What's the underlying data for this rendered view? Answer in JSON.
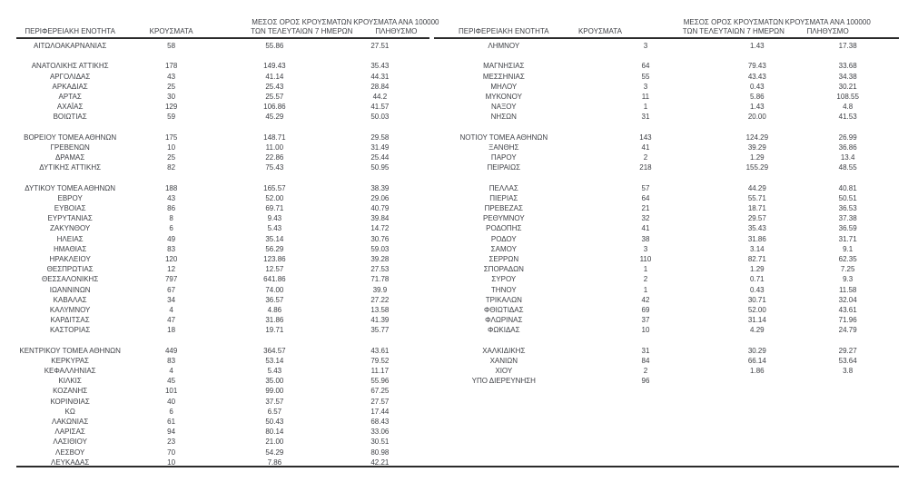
{
  "colors": {
    "text": "#3d3f44",
    "rule": "#2b2b2b",
    "background": "#ffffff"
  },
  "columns": {
    "region": "ΠΕΡΙΦΕΡΕΙΑΚΗ ΕΝΟΤΗΤΑ",
    "cases": "ΚΡΟΥΣΜΑΤΑ",
    "avg7": "ΜΕΣΟΣ ΟΡΟΣ ΚΡΟΥΣΜΑΤΩΝ ΤΩΝ ΤΕΛΕΥΤΑΙΩΝ 7 ΗΜΕΡΩΝ",
    "per100k": "ΚΡΟΥΣΜΑΤΑ ΑΝΑ 100000 ΠΛΗΘΥΣΜΟ"
  },
  "tables": {
    "left": {
      "groups": [
        [
          {
            "region": "ΑΙΤΩΛΟΑΚΑΡΝΑΝΙΑΣ",
            "cases": "58",
            "avg7": "55.86",
            "per100k": "27.51"
          }
        ],
        [
          {
            "region": "ΑΝΑΤΟΛΙΚΗΣ ΑΤΤΙΚΗΣ",
            "cases": "178",
            "avg7": "149.43",
            "per100k": "35.43"
          },
          {
            "region": "ΑΡΓΟΛΙΔΑΣ",
            "cases": "43",
            "avg7": "41.14",
            "per100k": "44.31"
          },
          {
            "region": "ΑΡΚΑΔΙΑΣ",
            "cases": "25",
            "avg7": "25.43",
            "per100k": "28.84"
          },
          {
            "region": "ΑΡΤΑΣ",
            "cases": "30",
            "avg7": "25.57",
            "per100k": "44.2"
          },
          {
            "region": "ΑΧΑΪΑΣ",
            "cases": "129",
            "avg7": "106.86",
            "per100k": "41.57"
          },
          {
            "region": "ΒΟΙΩΤΙΑΣ",
            "cases": "59",
            "avg7": "45.29",
            "per100k": "50.03"
          }
        ],
        [
          {
            "region": "ΒΟΡΕΙΟΥ ΤΟΜΕΑ ΑΘΗΝΩΝ",
            "cases": "175",
            "avg7": "148.71",
            "per100k": "29.58"
          },
          {
            "region": "ΓΡΕΒΕΝΩΝ",
            "cases": "10",
            "avg7": "11.00",
            "per100k": "31.49"
          },
          {
            "region": "ΔΡΑΜΑΣ",
            "cases": "25",
            "avg7": "22.86",
            "per100k": "25.44"
          },
          {
            "region": "ΔΥΤΙΚΗΣ ΑΤΤΙΚΗΣ",
            "cases": "82",
            "avg7": "75.43",
            "per100k": "50.95"
          }
        ],
        [
          {
            "region": "ΔΥΤΙΚΟΥ ΤΟΜΕΑ ΑΘΗΝΩΝ",
            "cases": "188",
            "avg7": "165.57",
            "per100k": "38.39"
          },
          {
            "region": "ΕΒΡΟΥ",
            "cases": "43",
            "avg7": "52.00",
            "per100k": "29.06"
          },
          {
            "region": "ΕΥΒΟΙΑΣ",
            "cases": "86",
            "avg7": "69.71",
            "per100k": "40.79"
          },
          {
            "region": "ΕΥΡΥΤΑΝΙΑΣ",
            "cases": "8",
            "avg7": "9.43",
            "per100k": "39.84"
          },
          {
            "region": "ΖΑΚΥΝΘΟΥ",
            "cases": "6",
            "avg7": "5.43",
            "per100k": "14.72"
          },
          {
            "region": "ΗΛΕΙΑΣ",
            "cases": "49",
            "avg7": "35.14",
            "per100k": "30.76"
          },
          {
            "region": "ΗΜΑΘΙΑΣ",
            "cases": "83",
            "avg7": "56.29",
            "per100k": "59.03"
          },
          {
            "region": "ΗΡΑΚΛΕΙΟΥ",
            "cases": "120",
            "avg7": "123.86",
            "per100k": "39.28"
          },
          {
            "region": "ΘΕΣΠΡΩΤΙΑΣ",
            "cases": "12",
            "avg7": "12.57",
            "per100k": "27.53"
          },
          {
            "region": "ΘΕΣΣΑΛΟΝΙΚΗΣ",
            "cases": "797",
            "avg7": "641.86",
            "per100k": "71.78"
          },
          {
            "region": "ΙΩΑΝΝΙΝΩΝ",
            "cases": "67",
            "avg7": "74.00",
            "per100k": "39.9"
          },
          {
            "region": "ΚΑΒΑΛΑΣ",
            "cases": "34",
            "avg7": "36.57",
            "per100k": "27.22"
          },
          {
            "region": "ΚΑΛΥΜΝΟΥ",
            "cases": "4",
            "avg7": "4.86",
            "per100k": "13.58"
          },
          {
            "region": "ΚΑΡΔΙΤΣΑΣ",
            "cases": "47",
            "avg7": "31.86",
            "per100k": "41.39"
          },
          {
            "region": "ΚΑΣΤΟΡΙΑΣ",
            "cases": "18",
            "avg7": "19.71",
            "per100k": "35.77"
          }
        ],
        [
          {
            "region": "ΚΕΝΤΡΙΚΟΥ ΤΟΜΕΑ ΑΘΗΝΩΝ",
            "cases": "449",
            "avg7": "364.57",
            "per100k": "43.61"
          },
          {
            "region": "ΚΕΡΚΥΡΑΣ",
            "cases": "83",
            "avg7": "53.14",
            "per100k": "79.52"
          },
          {
            "region": "ΚΕΦΑΛΛΗΝΙΑΣ",
            "cases": "4",
            "avg7": "5.43",
            "per100k": "11.17"
          },
          {
            "region": "ΚΙΛΚΙΣ",
            "cases": "45",
            "avg7": "35.00",
            "per100k": "55.96"
          },
          {
            "region": "ΚΟΖΑΝΗΣ",
            "cases": "101",
            "avg7": "99.00",
            "per100k": "67.25"
          },
          {
            "region": "ΚΟΡΙΝΘΙΑΣ",
            "cases": "40",
            "avg7": "37.57",
            "per100k": "27.57"
          },
          {
            "region": "ΚΩ",
            "cases": "6",
            "avg7": "6.57",
            "per100k": "17.44"
          },
          {
            "region": "ΛΑΚΩΝΙΑΣ",
            "cases": "61",
            "avg7": "50.43",
            "per100k": "68.43"
          },
          {
            "region": "ΛΑΡΙΣΑΣ",
            "cases": "94",
            "avg7": "80.14",
            "per100k": "33.06"
          },
          {
            "region": "ΛΑΣΙΘΙΟΥ",
            "cases": "23",
            "avg7": "21.00",
            "per100k": "30.51"
          },
          {
            "region": "ΛΕΣΒΟΥ",
            "cases": "70",
            "avg7": "54.29",
            "per100k": "80.98"
          },
          {
            "region": "ΛΕΥΚΑΔΑΣ",
            "cases": "10",
            "avg7": "7.86",
            "per100k": "42.21"
          }
        ]
      ]
    },
    "right": {
      "groups": [
        [
          {
            "region": "ΛΗΜΝΟΥ",
            "cases": "3",
            "avg7": "1.43",
            "per100k": "17.38"
          }
        ],
        [
          {
            "region": "ΜΑΓΝΗΣΙΑΣ",
            "cases": "64",
            "avg7": "79.43",
            "per100k": "33.68"
          },
          {
            "region": "ΜΕΣΣΗΝΙΑΣ",
            "cases": "55",
            "avg7": "43.43",
            "per100k": "34.38"
          },
          {
            "region": "ΜΗΛΟΥ",
            "cases": "3",
            "avg7": "0.43",
            "per100k": "30.21"
          },
          {
            "region": "ΜΥΚΟΝΟΥ",
            "cases": "11",
            "avg7": "5.86",
            "per100k": "108.55"
          },
          {
            "region": "ΝΑΞΟΥ",
            "cases": "1",
            "avg7": "1.43",
            "per100k": "4.8"
          },
          {
            "region": "ΝΗΣΩΝ",
            "cases": "31",
            "avg7": "20.00",
            "per100k": "41.53"
          }
        ],
        [
          {
            "region": "ΝΟΤΙΟΥ ΤΟΜΕΑ ΑΘΗΝΩΝ",
            "cases": "143",
            "avg7": "124.29",
            "per100k": "26.99"
          },
          {
            "region": "ΞΑΝΘΗΣ",
            "cases": "41",
            "avg7": "39.29",
            "per100k": "36.86"
          },
          {
            "region": "ΠΑΡΟΥ",
            "cases": "2",
            "avg7": "1.29",
            "per100k": "13.4"
          },
          {
            "region": "ΠΕΙΡΑΙΩΣ",
            "cases": "218",
            "avg7": "155.29",
            "per100k": "48.55"
          }
        ],
        [
          {
            "region": "ΠΕΛΛΑΣ",
            "cases": "57",
            "avg7": "44.29",
            "per100k": "40.81"
          },
          {
            "region": "ΠΙΕΡΙΑΣ",
            "cases": "64",
            "avg7": "55.71",
            "per100k": "50.51"
          },
          {
            "region": "ΠΡΕΒΕΖΑΣ",
            "cases": "21",
            "avg7": "18.71",
            "per100k": "36.53"
          },
          {
            "region": "ΡΕΘΥΜΝΟΥ",
            "cases": "32",
            "avg7": "29.57",
            "per100k": "37.38"
          },
          {
            "region": "ΡΟΔΟΠΗΣ",
            "cases": "41",
            "avg7": "35.43",
            "per100k": "36.59"
          },
          {
            "region": "ΡΟΔΟΥ",
            "cases": "38",
            "avg7": "31.86",
            "per100k": "31.71"
          },
          {
            "region": "ΣΑΜΟΥ",
            "cases": "3",
            "avg7": "3.14",
            "per100k": "9.1"
          },
          {
            "region": "ΣΕΡΡΩΝ",
            "cases": "110",
            "avg7": "82.71",
            "per100k": "62.35"
          },
          {
            "region": "ΣΠΟΡΑΔΩΝ",
            "cases": "1",
            "avg7": "1.29",
            "per100k": "7.25"
          },
          {
            "region": "ΣΥΡΟΥ",
            "cases": "2",
            "avg7": "0.71",
            "per100k": "9.3"
          },
          {
            "region": "ΤΗΝΟΥ",
            "cases": "1",
            "avg7": "0.43",
            "per100k": "11.58"
          },
          {
            "region": "ΤΡΙΚΑΛΩΝ",
            "cases": "42",
            "avg7": "30.71",
            "per100k": "32.04"
          },
          {
            "region": "ΦΘΙΩΤΙΔΑΣ",
            "cases": "69",
            "avg7": "52.00",
            "per100k": "43.61"
          },
          {
            "region": "ΦΛΩΡΙΝΑΣ",
            "cases": "37",
            "avg7": "31.14",
            "per100k": "71.96"
          },
          {
            "region": "ΦΩΚΙΔΑΣ",
            "cases": "10",
            "avg7": "4.29",
            "per100k": "24.79"
          }
        ],
        [
          {
            "region": "ΧΑΛΚΙΔΙΚΗΣ",
            "cases": "31",
            "avg7": "30.29",
            "per100k": "29.27"
          },
          {
            "region": "ΧΑΝΙΩΝ",
            "cases": "84",
            "avg7": "66.14",
            "per100k": "53.64"
          },
          {
            "region": "ΧΙΟΥ",
            "cases": "2",
            "avg7": "1.86",
            "per100k": "3.8"
          },
          {
            "region": "ΥΠΟ ΔΙΕΡΕΥΝΗΣΗ",
            "cases": "96",
            "avg7": "",
            "per100k": ""
          }
        ]
      ]
    }
  }
}
